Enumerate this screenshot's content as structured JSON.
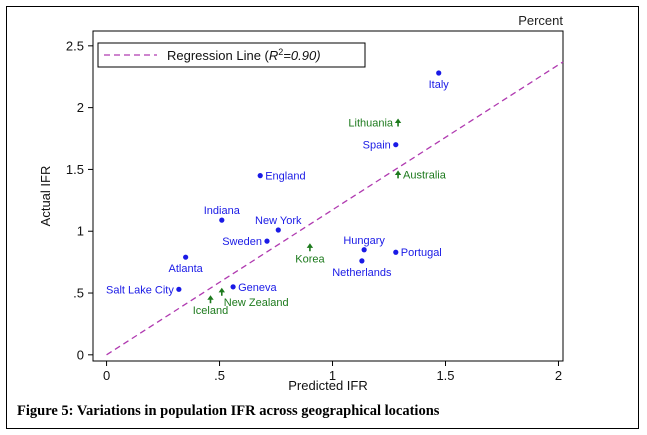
{
  "caption": "Figure 5: Variations in population IFR across geographical locations",
  "chart_data": {
    "type": "scatter",
    "unit_label": "Percent",
    "xlabel": "Predicted IFR",
    "ylabel": "Actual IFR",
    "xlim": [
      -0.06,
      2.02
    ],
    "ylim": [
      -0.05,
      2.62
    ],
    "x_ticks": [
      0,
      0.5,
      1,
      1.5,
      2
    ],
    "x_tick_labels": [
      "0",
      ".5",
      "1",
      "1.5",
      "2"
    ],
    "y_ticks": [
      0,
      0.5,
      1,
      1.5,
      2,
      2.5
    ],
    "y_tick_labels": [
      "0",
      ".5",
      "1",
      "1.5",
      "2",
      "2.5"
    ],
    "grid": false,
    "legend": {
      "position": "top-left",
      "label_prefix": "Regression Line (",
      "r_symbol": "R",
      "r_superscript": "2",
      "label_value": "=0.90)"
    },
    "regression_line": {
      "x": [
        0,
        2.02
      ],
      "y": [
        0,
        2.37
      ],
      "color": "#b03ab0",
      "style": "dashed"
    },
    "series": [
      {
        "name": "circle-points",
        "marker": "circle",
        "color": "#1a1ae6",
        "points": [
          {
            "label": "Italy",
            "x": 1.47,
            "y": 2.28,
            "label_pos": "below"
          },
          {
            "label": "Spain",
            "x": 1.28,
            "y": 1.7,
            "label_pos": "left"
          },
          {
            "label": "England",
            "x": 0.68,
            "y": 1.45,
            "label_pos": "right"
          },
          {
            "label": "Indiana",
            "x": 0.51,
            "y": 1.09,
            "label_pos": "above"
          },
          {
            "label": "New York",
            "x": 0.76,
            "y": 1.01,
            "label_pos": "above"
          },
          {
            "label": "Sweden",
            "x": 0.71,
            "y": 0.92,
            "label_pos": "left"
          },
          {
            "label": "Atlanta",
            "x": 0.35,
            "y": 0.79,
            "label_pos": "below"
          },
          {
            "label": "Hungary",
            "x": 1.14,
            "y": 0.85,
            "label_pos": "above"
          },
          {
            "label": "Portugal",
            "x": 1.28,
            "y": 0.83,
            "label_pos": "right"
          },
          {
            "label": "Netherlands",
            "x": 1.13,
            "y": 0.76,
            "label_pos": "below"
          },
          {
            "label": "Salt Lake City",
            "x": 0.32,
            "y": 0.53,
            "label_pos": "left"
          },
          {
            "label": "Geneva",
            "x": 0.56,
            "y": 0.55,
            "label_pos": "right"
          }
        ]
      },
      {
        "name": "arrow-points",
        "marker": "arrow",
        "color": "#1d7a1d",
        "points": [
          {
            "label": "Lithuania",
            "x": 1.29,
            "y": 1.88,
            "label_pos": "left"
          },
          {
            "label": "Australia",
            "x": 1.29,
            "y": 1.46,
            "label_pos": "right"
          },
          {
            "label": "Korea",
            "x": 0.9,
            "y": 0.87,
            "label_pos": "below"
          },
          {
            "label": "New Zealand",
            "x": 0.51,
            "y": 0.51,
            "label_pos": "below-right"
          },
          {
            "label": "Iceland",
            "x": 0.46,
            "y": 0.45,
            "label_pos": "below"
          }
        ]
      }
    ]
  }
}
